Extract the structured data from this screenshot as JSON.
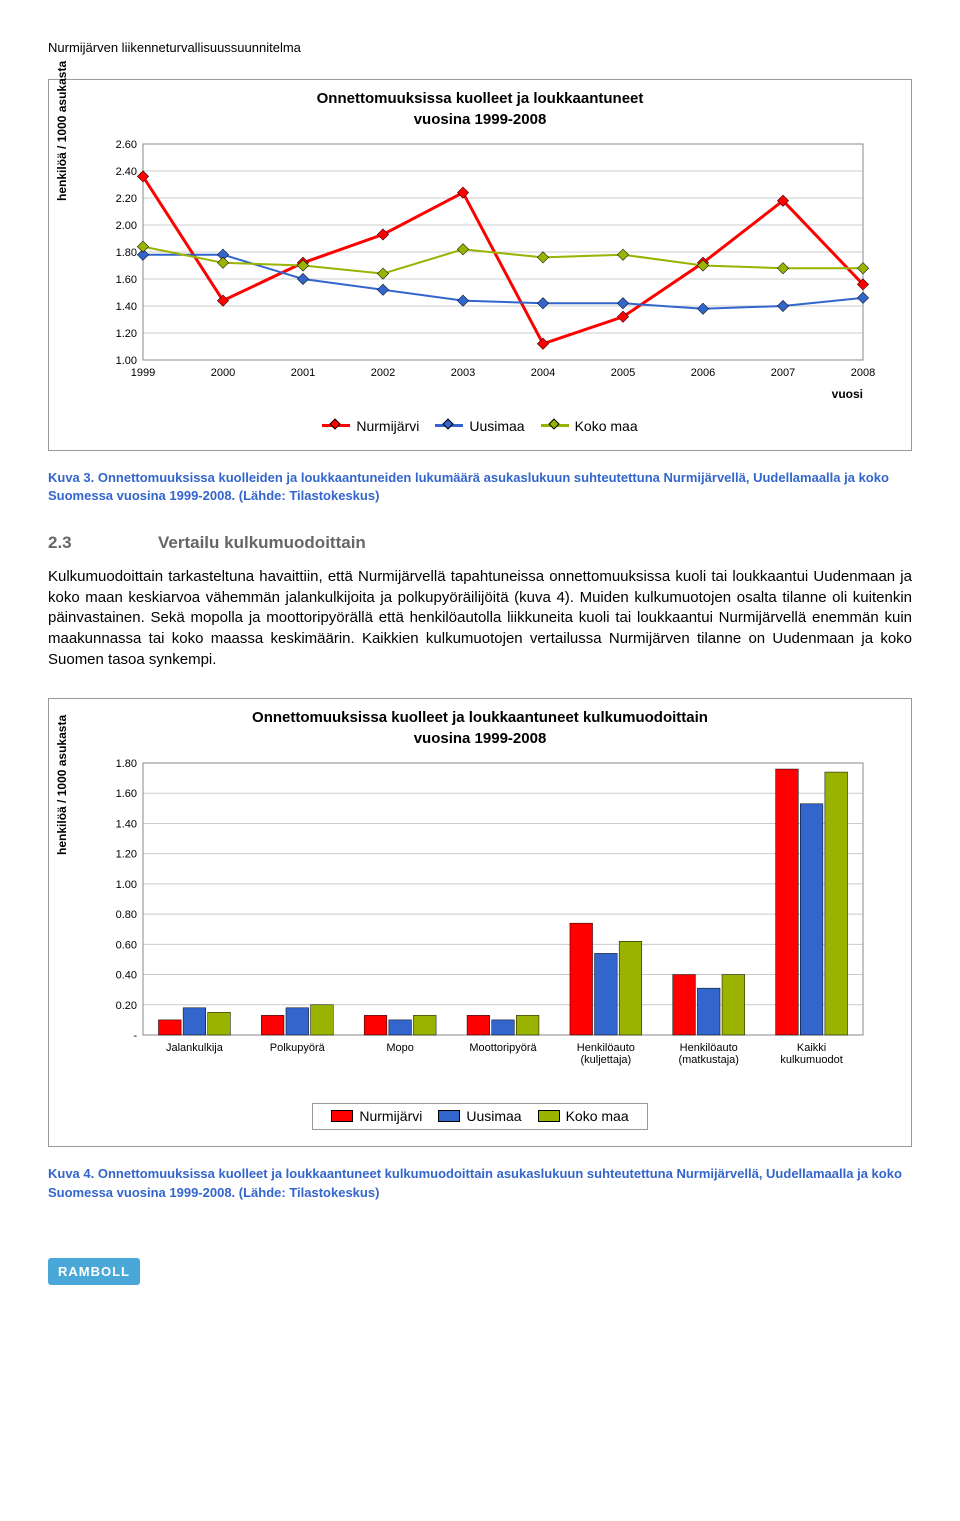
{
  "doc_header": "Nurmijärven liikenneturvallisuussuunnitelma",
  "chart1": {
    "type": "line",
    "title": "Onnettomuuksissa kuolleet ja loukkaantuneet",
    "subtitle": "vuosina 1999-2008",
    "y_label": "henkilöä / 1000 asukasta",
    "x_label": "vuosi",
    "years": [
      "1999",
      "2000",
      "2001",
      "2002",
      "2003",
      "2004",
      "2005",
      "2006",
      "2007",
      "2008"
    ],
    "y_ticks": [
      "1.00",
      "1.20",
      "1.40",
      "1.60",
      "1.80",
      "2.00",
      "2.20",
      "2.40",
      "2.60"
    ],
    "ylim": [
      1.0,
      2.6
    ],
    "series": [
      {
        "name": "Nurmijärvi",
        "color": "#ff0000",
        "marker_fill": "#ff0000",
        "values": [
          2.36,
          1.44,
          1.72,
          1.93,
          2.24,
          1.12,
          1.32,
          1.72,
          2.18,
          1.56
        ],
        "width": 3
      },
      {
        "name": "Uusimaa",
        "color": "#3366cc",
        "marker_fill": "#3366cc",
        "values": [
          1.78,
          1.78,
          1.6,
          1.52,
          1.44,
          1.42,
          1.42,
          1.38,
          1.4,
          1.46
        ],
        "width": 2
      },
      {
        "name": "Koko maa",
        "color": "#99b300",
        "marker_fill": "#99b300",
        "values": [
          1.84,
          1.72,
          1.7,
          1.64,
          1.82,
          1.76,
          1.78,
          1.7,
          1.68,
          1.68
        ],
        "width": 2
      }
    ],
    "legend": {
      "items": [
        "Nurmijärvi",
        "Uusimaa",
        "Koko maa"
      ],
      "colors": [
        "#ff0000",
        "#3366cc",
        "#99b300"
      ]
    }
  },
  "caption1": "Kuva 3. Onnettomuuksissa kuolleiden ja loukkaantuneiden lukumäärä asukaslukuun suhteutettuna Nurmijärvellä, Uudellamaalla ja koko Suomessa vuosina 1999-2008. (Lähde: Tilastokeskus)",
  "section": {
    "num": "2.3",
    "title": "Vertailu kulkumuodoittain"
  },
  "paragraph": "Kulkumuodoittain tarkasteltuna havaittiin, että Nurmijärvellä tapahtuneissa onnettomuuksissa kuoli tai loukkaantui Uudenmaan ja koko maan keskiarvoa vähemmän jalankulkijoita ja polkupyöräilijöitä (kuva 4). Muiden kulkumuotojen osalta tilanne oli kuitenkin päinvastainen. Sekä mopolla ja moottoripyörällä että henkilöautolla liikkuneita kuoli tai loukkaantui Nurmijärvellä enemmän kuin maakunnassa tai koko maassa keskimäärin. Kaikkien kulkumuotojen vertailussa Nurmijärven tilanne on Uudenmaan ja koko Suomen tasoa synkempi.",
  "chart2": {
    "type": "bar",
    "title": "Onnettomuuksissa kuolleet ja loukkaantuneet kulkumuodoittain",
    "subtitle": "vuosina 1999-2008",
    "y_label": "henkilöä / 1000 asukasta",
    "categories": [
      "Jalankulkija",
      "Polkupyörä",
      "Mopo",
      "Moottoripyörä",
      "Henkilöauto\n(kuljettaja)",
      "Henkilöauto\n(matkustaja)",
      "Kaikki\nkulkumuodot"
    ],
    "y_ticks": [
      "-",
      "0.20",
      "0.40",
      "0.60",
      "0.80",
      "1.00",
      "1.20",
      "1.40",
      "1.60",
      "1.80"
    ],
    "ylim": [
      0.0,
      1.8
    ],
    "series": [
      {
        "name": "Nurmijärvi",
        "color": "#ff0000",
        "values": [
          0.1,
          0.13,
          0.13,
          0.13,
          0.74,
          0.4,
          1.76
        ]
      },
      {
        "name": "Uusimaa",
        "color": "#3366cc",
        "values": [
          0.18,
          0.18,
          0.1,
          0.1,
          0.54,
          0.31,
          1.53
        ]
      },
      {
        "name": "Koko maa",
        "color": "#99b300",
        "values": [
          0.15,
          0.2,
          0.13,
          0.13,
          0.62,
          0.4,
          1.74
        ]
      }
    ],
    "legend": {
      "items": [
        "Nurmijärvi",
        "Uusimaa",
        "Koko maa"
      ],
      "colors": [
        "#ff0000",
        "#3366cc",
        "#99b300"
      ]
    }
  },
  "caption2": "Kuva 4. Onnettomuuksissa kuolleet ja loukkaantuneet kulkumuodoittain asukaslukuun suhteutettuna Nurmijärvellä, Uudellamaalla ja koko Suomessa vuosina 1999-2008. (Lähde: Tilastokeskus)",
  "logo_text": "RAMBOLL"
}
